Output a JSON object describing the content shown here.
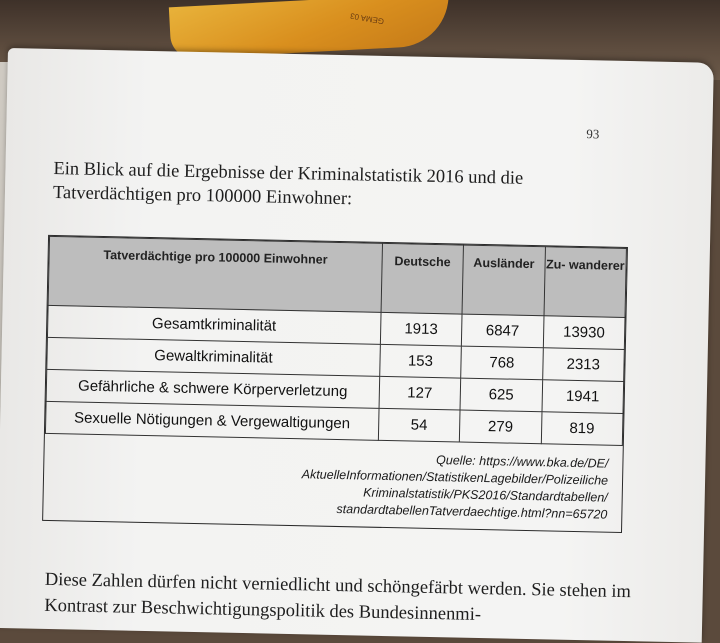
{
  "page": {
    "number": "93",
    "intro_text": "Ein Blick auf die Ergebnisse der Kriminalstatistik 2016 und die Tatverdächtigen pro 100000 Einwohner:",
    "closing_text": "Diese Zahlen dürfen nicht verniedlicht und schöngefärbt werden. Sie stehen im Kontrast zur Beschwichtigungspolitik des Bundesinnenmi-"
  },
  "table": {
    "headers": {
      "label": "Tatverdächtige pro 100000 Einwohner",
      "deutsche": "Deutsche",
      "auslaender": "Ausländer",
      "zuwanderer": "Zu- wanderer"
    },
    "rows": [
      {
        "label": "Gesamtkriminalität",
        "deutsche": "1913",
        "auslaender": "6847",
        "zuwanderer": "13930"
      },
      {
        "label": "Gewaltkriminalität",
        "deutsche": "153",
        "auslaender": "768",
        "zuwanderer": "2313"
      },
      {
        "label": "Gefährliche & schwere Körperverletzung",
        "deutsche": "127",
        "auslaender": "625",
        "zuwanderer": "1941"
      },
      {
        "label": "Sexuelle Nötigungen & Vergewaltigungen",
        "deutsche": "54",
        "auslaender": "279",
        "zuwanderer": "819"
      }
    ],
    "source": {
      "prefix": "Quelle:",
      "line1": "https://www.bka.de/DE/",
      "line2": "AktuelleInformationen/StatistikenLagebilder/Polizeiliche",
      "line3": "Kriminalstatistik/PKS2016/Standardtabellen/",
      "line4": "standardtabellenTatverdaechtige.html?nn=65720"
    }
  },
  "decor": {
    "leaf_print": "GEMA 03",
    "colors": {
      "leaf": "#d98f1e",
      "table_header": "#bdbdbd",
      "paper": "#f3f3f2"
    }
  }
}
